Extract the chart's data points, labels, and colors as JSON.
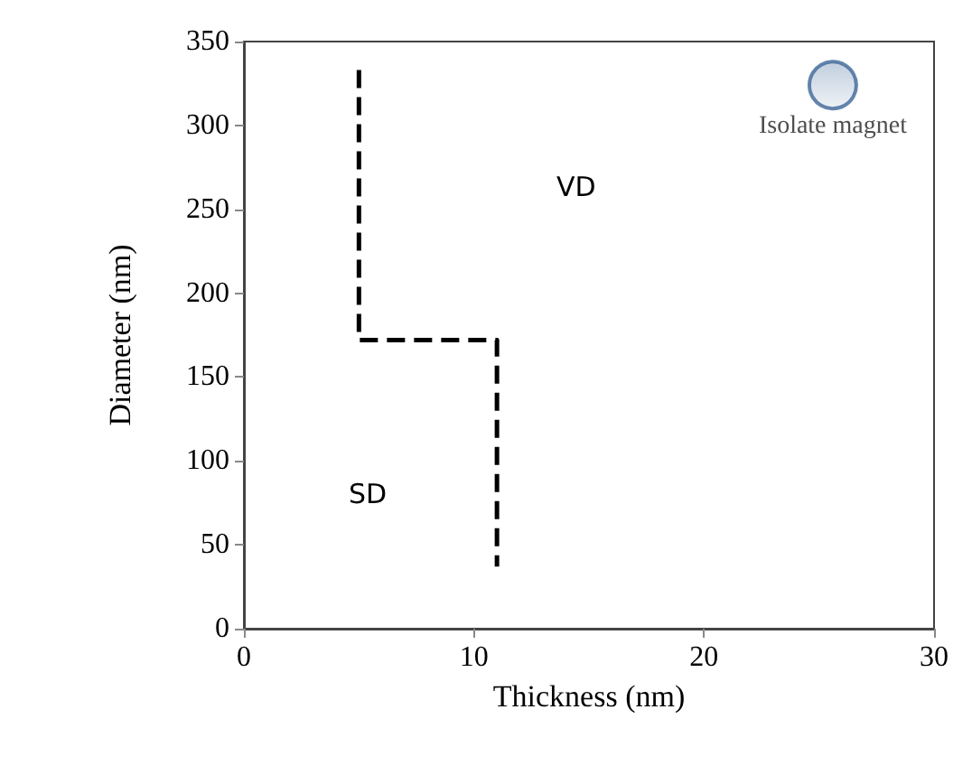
{
  "chart_data": {
    "type": "line",
    "xlabel": "Thickness (nm)",
    "ylabel": "Diameter (nm)",
    "xlim": [
      0,
      30
    ],
    "xticks": [
      0,
      10,
      20,
      30
    ],
    "ylim": [
      0,
      350
    ],
    "yticks": [
      0,
      50,
      100,
      150,
      200,
      250,
      300,
      350
    ],
    "grid": false,
    "legend": false,
    "series": [
      {
        "color": "#000000",
        "line_style": "dashed",
        "marker": "none",
        "x": [
          5,
          5,
          11,
          11
        ],
        "values": [
          333,
          172,
          172,
          37
        ]
      },
      {
        "type": "scatter",
        "name": "Isolate magnet",
        "color": "#3d6797",
        "marker": "circle",
        "x": [
          25.6
        ],
        "values": [
          324
        ]
      }
    ],
    "annotations": [
      "VD",
      "SD"
    ]
  }
}
